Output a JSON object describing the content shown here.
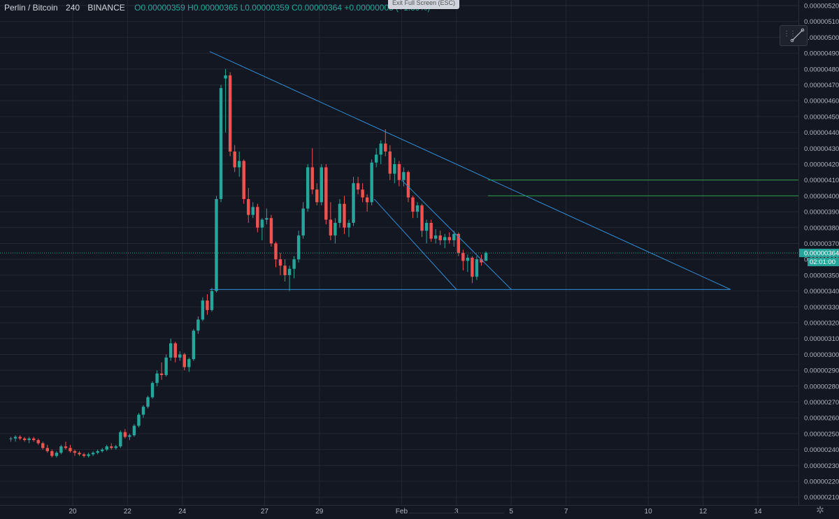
{
  "header": {
    "symbol": "Perlin / Bitcoin",
    "interval": "240",
    "exchange": "BINANCE",
    "ohlc": "O0.00000359 H0.00000365 L0.00000359 C0.00000364 +0.00000005 (+1.39%)"
  },
  "exit_fullscreen_label": "Exit Full Screen (ESC)",
  "colors": {
    "background": "#131722",
    "up": "#26a69a",
    "down": "#ef5350",
    "trendline": "#2f8fd8",
    "hline": "#2e9b4a",
    "grid": "#242732"
  },
  "icons": {
    "trendline_tool": "trendline-tool-icon",
    "settings": "gear-icon"
  },
  "chart_data": {
    "type": "candlestick",
    "title": "Perlin / Bitcoin",
    "interval": "240",
    "ylim": [
      2.05e-06,
      5.22e-06
    ],
    "y_ticks": [
      "0.00000520",
      "0.00000510",
      "0.00000500",
      "0.00000490",
      "0.00000480",
      "0.00000470",
      "0.00000460",
      "0.00000450",
      "0.00000440",
      "0.00000430",
      "0.00000420",
      "0.00000410",
      "0.00000400",
      "0.00000390",
      "0.00000380",
      "0.00000370",
      "0.00000360",
      "0.00000350",
      "0.00000340",
      "0.00000330",
      "0.00000320",
      "0.00000310",
      "0.00000300",
      "0.00000290",
      "0.00000280",
      "0.00000270",
      "0.00000260",
      "0.00000250",
      "0.00000240",
      "0.00000230",
      "0.00000220",
      "0.00000210"
    ],
    "x_ticks": [
      "20",
      "22",
      "24",
      "27",
      "29",
      "Feb",
      "3",
      "5",
      "7",
      "10",
      "12",
      "14"
    ],
    "last_price": "0.00000364",
    "countdown": "02:01:00",
    "ohlc_series": [
      [
        247,
        248,
        245,
        247
      ],
      [
        247,
        249,
        245,
        248
      ],
      [
        248,
        249,
        246,
        247
      ],
      [
        247,
        248,
        245,
        246
      ],
      [
        246,
        248,
        244,
        247
      ],
      [
        247,
        248,
        245,
        246
      ],
      [
        246,
        247,
        243,
        244
      ],
      [
        244,
        245,
        240,
        241
      ],
      [
        241,
        243,
        238,
        239
      ],
      [
        239,
        240,
        235,
        236
      ],
      [
        236,
        239,
        235,
        238
      ],
      [
        238,
        243,
        237,
        242
      ],
      [
        242,
        245,
        240,
        241
      ],
      [
        241,
        243,
        238,
        239
      ],
      [
        239,
        240,
        236,
        238
      ],
      [
        238,
        239,
        236,
        237
      ],
      [
        237,
        238,
        235,
        236
      ],
      [
        236,
        238,
        235,
        237
      ],
      [
        237,
        239,
        236,
        238
      ],
      [
        238,
        240,
        237,
        239
      ],
      [
        239,
        241,
        238,
        240
      ],
      [
        240,
        243,
        239,
        242
      ],
      [
        242,
        244,
        240,
        241
      ],
      [
        241,
        243,
        240,
        242
      ],
      [
        242,
        252,
        241,
        251
      ],
      [
        251,
        253,
        247,
        248
      ],
      [
        248,
        250,
        246,
        249
      ],
      [
        249,
        256,
        248,
        255
      ],
      [
        255,
        263,
        254,
        262
      ],
      [
        262,
        268,
        260,
        267
      ],
      [
        267,
        274,
        266,
        273
      ],
      [
        273,
        283,
        272,
        282
      ],
      [
        282,
        290,
        280,
        288
      ],
      [
        288,
        295,
        284,
        287
      ],
      [
        287,
        300,
        286,
        298
      ],
      [
        298,
        310,
        296,
        307
      ],
      [
        307,
        308,
        295,
        298
      ],
      [
        298,
        302,
        296,
        300
      ],
      [
        300,
        301,
        290,
        292
      ],
      [
        292,
        298,
        289,
        297
      ],
      [
        297,
        316,
        296,
        315
      ],
      [
        315,
        324,
        313,
        322
      ],
      [
        322,
        336,
        321,
        334
      ],
      [
        334,
        338,
        325,
        328
      ],
      [
        328,
        342,
        327,
        340
      ],
      [
        340,
        400,
        339,
        398
      ],
      [
        398,
        470,
        396,
        468
      ],
      [
        474,
        480,
        440,
        476
      ],
      [
        476,
        478,
        425,
        428
      ],
      [
        428,
        432,
        415,
        418
      ],
      [
        418,
        428,
        412,
        422
      ],
      [
        422,
        423,
        395,
        398
      ],
      [
        398,
        405,
        383,
        388
      ],
      [
        388,
        396,
        386,
        393
      ],
      [
        393,
        395,
        377,
        380
      ],
      [
        380,
        386,
        372,
        385
      ],
      [
        385,
        392,
        382,
        386
      ],
      [
        386,
        388,
        368,
        370
      ],
      [
        370,
        371,
        355,
        360
      ],
      [
        360,
        364,
        350,
        356
      ],
      [
        356,
        360,
        346,
        350
      ],
      [
        350,
        356,
        340,
        354
      ],
      [
        354,
        362,
        348,
        360
      ],
      [
        360,
        378,
        358,
        375
      ],
      [
        375,
        396,
        373,
        392
      ],
      [
        392,
        420,
        390,
        418
      ],
      [
        418,
        430,
        401,
        404
      ],
      [
        404,
        408,
        394,
        396
      ],
      [
        396,
        420,
        394,
        418
      ],
      [
        418,
        420,
        382,
        385
      ],
      [
        385,
        396,
        372,
        375
      ],
      [
        375,
        386,
        370,
        383
      ],
      [
        383,
        398,
        380,
        395
      ],
      [
        395,
        400,
        376,
        380
      ],
      [
        380,
        385,
        374,
        383
      ],
      [
        383,
        412,
        381,
        408
      ],
      [
        408,
        412,
        401,
        404
      ],
      [
        404,
        408,
        396,
        399
      ],
      [
        399,
        401,
        390,
        396
      ],
      [
        396,
        423,
        394,
        421
      ],
      [
        421,
        430,
        418,
        426
      ],
      [
        426,
        435,
        420,
        433
      ],
      [
        433,
        442,
        425,
        428
      ],
      [
        428,
        432,
        410,
        414
      ],
      [
        414,
        424,
        408,
        420
      ],
      [
        420,
        422,
        406,
        410
      ],
      [
        410,
        418,
        406,
        415
      ],
      [
        415,
        416,
        396,
        399
      ],
      [
        399,
        400,
        386,
        390
      ],
      [
        390,
        396,
        386,
        394
      ],
      [
        394,
        395,
        374,
        378
      ],
      [
        378,
        385,
        370,
        383
      ],
      [
        383,
        385,
        371,
        373
      ],
      [
        373,
        379,
        370,
        375
      ],
      [
        375,
        378,
        369,
        372
      ],
      [
        372,
        376,
        367,
        374
      ],
      [
        374,
        377,
        370,
        372
      ],
      [
        372,
        378,
        368,
        376
      ],
      [
        376,
        377,
        362,
        364
      ],
      [
        364,
        366,
        353,
        359
      ],
      [
        359,
        363,
        352,
        361
      ],
      [
        361,
        362,
        345,
        349
      ],
      [
        349,
        362,
        347,
        360
      ],
      [
        360,
        363,
        356,
        358
      ],
      [
        359,
        365,
        359,
        364
      ]
    ],
    "drawings": [
      {
        "name": "descending-triangle-upper",
        "type": "trendline",
        "from": [
          "Jan 25",
          4.91e-06
        ],
        "to": [
          "Feb 13",
          3.41e-06
        ]
      },
      {
        "name": "triangle-base-support",
        "type": "trendline",
        "from": [
          "Jan 25",
          3.41e-06
        ],
        "to": [
          "Feb 13",
          3.41e-06
        ]
      },
      {
        "name": "falling-channel-upper",
        "type": "trendline",
        "from": [
          "Feb 1",
          4.1e-06
        ],
        "to": [
          "Feb 5",
          3.41e-06
        ]
      },
      {
        "name": "falling-channel-lower",
        "type": "trendline",
        "from": [
          "Jan 31",
          3.98e-06
        ],
        "to": [
          "Feb 3",
          3.41e-06
        ]
      },
      {
        "name": "resistance-0.00000410",
        "type": "horizontal",
        "from": "Feb 4",
        "value": 4.1e-06
      },
      {
        "name": "resistance-0.00000400",
        "type": "horizontal",
        "from": "Feb 4",
        "value": 4e-06
      }
    ]
  }
}
